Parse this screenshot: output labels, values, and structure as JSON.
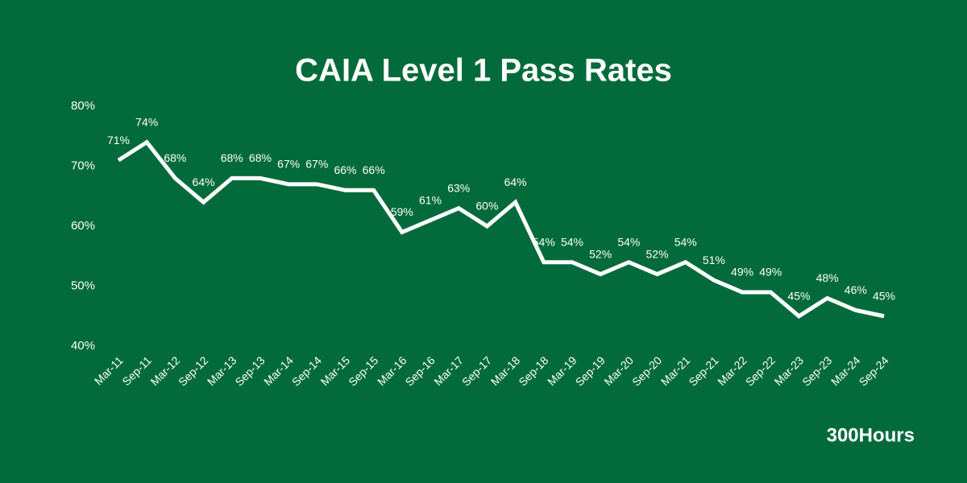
{
  "chart_data": {
    "type": "line",
    "title": "CAIA Level 1 Pass Rates",
    "categories": [
      "Mar-11",
      "Sep-11",
      "Mar-12",
      "Sep-12",
      "Mar-13",
      "Sep-13",
      "Mar-14",
      "Sep-14",
      "Mar-15",
      "Sep-15",
      "Mar-16",
      "Sep-16",
      "Mar-17",
      "Sep-17",
      "Mar-18",
      "Sep-18",
      "Mar-19",
      "Sep-19",
      "Mar-20",
      "Sep-20",
      "Mar-21",
      "Sep-21",
      "Mar-22",
      "Sep-22",
      "Mar-23",
      "Sep-23",
      "Mar-24",
      "Sep-24"
    ],
    "values": [
      71,
      74,
      68,
      64,
      68,
      68,
      67,
      67,
      66,
      66,
      59,
      61,
      63,
      60,
      64,
      54,
      54,
      52,
      54,
      52,
      54,
      51,
      49,
      49,
      45,
      48,
      46,
      45
    ],
    "value_labels": [
      "71%",
      "74%",
      "68%",
      "64%",
      "68%",
      "68%",
      "67%",
      "67%",
      "66%",
      "66%",
      "59%",
      "61%",
      "63%",
      "60%",
      "64%",
      "54%",
      "54%",
      "52%",
      "54%",
      "52%",
      "54%",
      "51%",
      "49%",
      "49%",
      "45%",
      "48%",
      "46%",
      "45%"
    ],
    "color": "#ffffff",
    "ylim": [
      40,
      80
    ],
    "yticks": [
      {
        "value": 40,
        "label": "40%"
      },
      {
        "value": 50,
        "label": "50%"
      },
      {
        "value": 60,
        "label": "60%"
      },
      {
        "value": 70,
        "label": "70%"
      },
      {
        "value": 80,
        "label": "80%"
      }
    ],
    "grid": false
  },
  "brand": "300Hours"
}
